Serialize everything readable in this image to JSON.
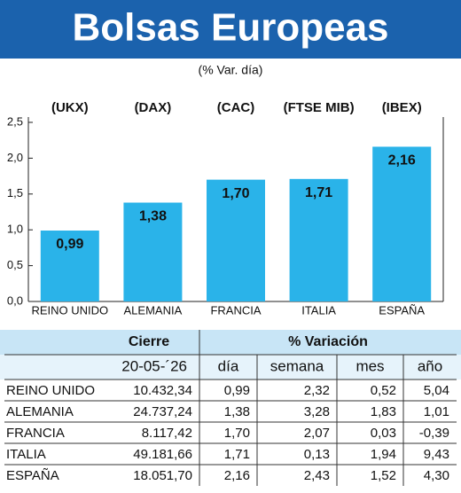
{
  "chart_data": {
    "type": "bar",
    "title": "Bolsas Europeas",
    "subtitle": "(% Var. día)",
    "categories": [
      "REINO UNIDO",
      "ALEMANIA",
      "FRANCIA",
      "ITALIA",
      "ESPAÑA"
    ],
    "indices": [
      "(UKX)",
      "(DAX)",
      "(CAC)",
      "(FTSE MIB)",
      "(IBEX)"
    ],
    "values": [
      0.99,
      1.38,
      1.7,
      1.71,
      2.16
    ],
    "value_labels": [
      "0,99",
      "1,38",
      "1,70",
      "1,71",
      "2,16"
    ],
    "color": "#2ab3e9",
    "ylim": [
      0,
      2.5
    ],
    "yticks": [
      {
        "value": 0,
        "label": "0,0"
      },
      {
        "value": 0.5,
        "label": "0,5"
      },
      {
        "value": 1,
        "label": "1,0"
      },
      {
        "value": 1.5,
        "label": "1,5"
      },
      {
        "value": 2,
        "label": "2,0"
      },
      {
        "value": 2.5,
        "label": "2,5"
      }
    ]
  },
  "table": {
    "header1": [
      "Cierre",
      "% Variación"
    ],
    "header2": [
      "20-05-´26",
      "día",
      "semana",
      "mes",
      "año"
    ],
    "rows": [
      [
        "REINO UNIDO",
        "10.432,34",
        "0,99",
        "2,32",
        "0,52",
        "5,04"
      ],
      [
        "ALEMANIA",
        "24.737,24",
        "1,38",
        "3,28",
        "1,83",
        "1,01"
      ],
      [
        "FRANCIA",
        "8.117,42",
        "1,70",
        "2,07",
        "0,03",
        "-0,39"
      ],
      [
        "ITALIA",
        "49.181,66",
        "1,71",
        "0,13",
        "1,94",
        "9,43"
      ],
      [
        "ESPAÑA",
        "18.051,70",
        "2,16",
        "2,43",
        "1,52",
        "4,30"
      ]
    ]
  }
}
